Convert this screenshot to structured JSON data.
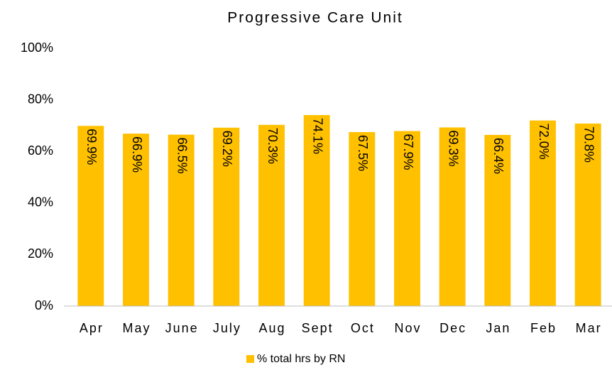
{
  "chart_data": {
    "type": "bar",
    "title": "Progressive Care Unit",
    "categories": [
      "Apr",
      "May",
      "June",
      "July",
      "Aug",
      "Sept",
      "Oct",
      "Nov",
      "Dec",
      "Jan",
      "Feb",
      "Mar"
    ],
    "series": [
      {
        "name": "% total hrs by RN",
        "color": "#FFC000",
        "values": [
          69.9,
          66.9,
          66.5,
          69.2,
          70.3,
          74.1,
          67.5,
          67.9,
          69.3,
          66.4,
          72.0,
          70.8
        ],
        "value_labels": [
          "69.9%",
          "66.9%",
          "66.5%",
          "69.2%",
          "70.3%",
          "74.1%",
          "67.5%",
          "67.9%",
          "69.3%",
          "66.4%",
          "72.0%",
          "70.8%"
        ]
      }
    ],
    "ylim": [
      0,
      100
    ],
    "yticks": [
      {
        "value": 0,
        "label": "0%"
      },
      {
        "value": 20,
        "label": "20%"
      },
      {
        "value": 40,
        "label": "40%"
      },
      {
        "value": 60,
        "label": "60%"
      },
      {
        "value": 80,
        "label": "80%"
      },
      {
        "value": 100,
        "label": "100%"
      }
    ],
    "grid": false,
    "legend": "bottom"
  }
}
